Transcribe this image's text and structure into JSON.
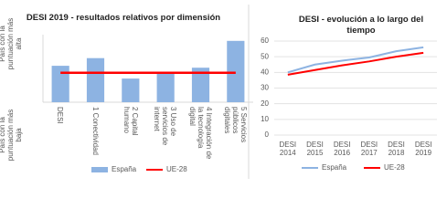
{
  "chart_data": [
    {
      "type": "bar",
      "title": "DESI 2019 - resultados relativos por dimensión",
      "ylabel_high": "País con la puntuación más alta",
      "ylabel_low": "País con la puntuación más baja",
      "categories": [
        "DESI",
        "1 Conectividad",
        "2 Capital humano",
        "3 Uso de servicios de internet",
        "4 Integración de la tecnología digital",
        "5 Servicios públicos digitales"
      ],
      "series": [
        {
          "name": "España",
          "color": "#8db3e2",
          "type": "bar",
          "values": [
            57,
            69,
            37,
            46,
            54,
            96
          ]
        },
        {
          "name": "UE-28",
          "color": "#ff0000",
          "type": "line",
          "values": [
            46,
            46,
            46,
            46,
            46,
            46
          ]
        }
      ],
      "ylim": [
        0,
        100
      ]
    },
    {
      "type": "line",
      "title": "DESI - evolución a lo largo del tiempo",
      "categories": [
        "DESI 2014",
        "DESI 2015",
        "DESI 2016",
        "DESI 2017",
        "DESI 2018",
        "DESI 2019"
      ],
      "series": [
        {
          "name": "España",
          "color": "#8db3e2",
          "values": [
            40,
            45,
            47.5,
            49.5,
            53.5,
            56
          ]
        },
        {
          "name": "UE-28",
          "color": "#ff0000",
          "values": [
            38.5,
            41.5,
            44.5,
            47,
            50,
            52.5
          ]
        }
      ],
      "ylim": [
        0,
        60
      ],
      "yticks": [
        0,
        10,
        20,
        30,
        40,
        50,
        60
      ],
      "grid": true
    }
  ]
}
